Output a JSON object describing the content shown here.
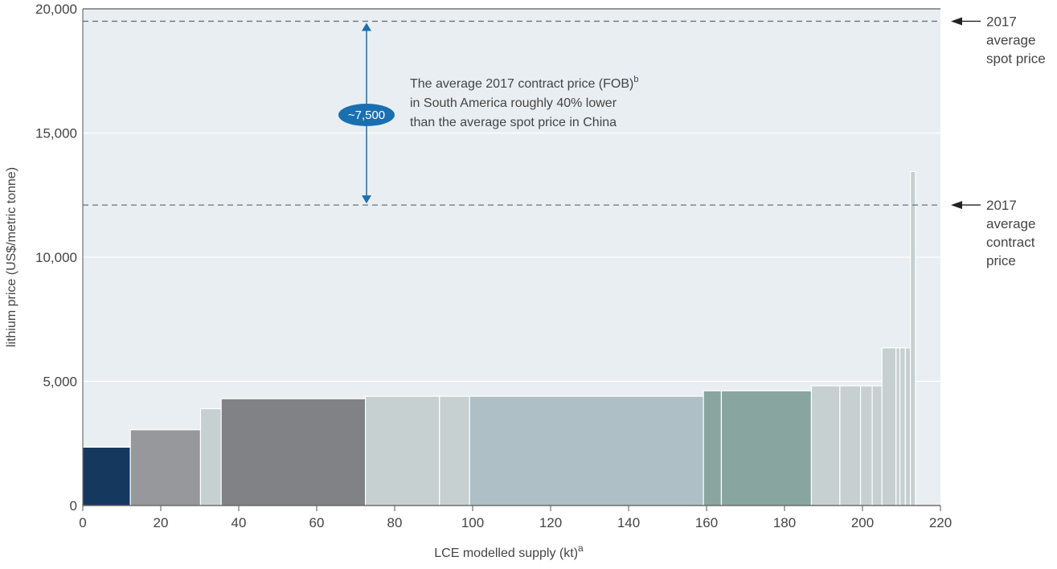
{
  "chart_data": {
    "type": "bar",
    "title": "",
    "xlabel": "LCE modelled supply (kt)",
    "xlabel_superscript": "a",
    "ylabel": "lithium price (US$/metric tonne)",
    "xlim": [
      0,
      220
    ],
    "ylim": [
      0,
      20000
    ],
    "x_ticks": [
      "0",
      "20",
      "40",
      "60",
      "80",
      "100",
      "120",
      "140",
      "160",
      "180",
      "200",
      "220"
    ],
    "y_ticks": [
      "0",
      "5,000",
      "10,000",
      "15,000",
      "20,000"
    ],
    "grid": "horizontal",
    "bars": [
      {
        "x0": 0,
        "x1": 12.2,
        "value": 2350,
        "color": "#15385e"
      },
      {
        "x0": 12.2,
        "x1": 30.2,
        "value": 3050,
        "color": "#97989b"
      },
      {
        "x0": 30.2,
        "x1": 35.5,
        "value": 3900,
        "color": "#c6d0d1"
      },
      {
        "x0": 35.5,
        "x1": 72.5,
        "value": 4300,
        "color": "#818285"
      },
      {
        "x0": 72.5,
        "x1": 91.5,
        "value": 4400,
        "color": "#c6d0d1"
      },
      {
        "x0": 91.5,
        "x1": 99.2,
        "value": 4400,
        "color": "#c6d0d1"
      },
      {
        "x0": 99.2,
        "x1": 159.2,
        "value": 4400,
        "color": "#aebfc5"
      },
      {
        "x0": 159.2,
        "x1": 163.8,
        "value": 4620,
        "color": "#89a59f"
      },
      {
        "x0": 163.8,
        "x1": 186.9,
        "value": 4620,
        "color": "#89a59f"
      },
      {
        "x0": 186.9,
        "x1": 194.2,
        "value": 4820,
        "color": "#c6d0d1"
      },
      {
        "x0": 194.2,
        "x1": 199.5,
        "value": 4820,
        "color": "#c6d0d1"
      },
      {
        "x0": 199.5,
        "x1": 202.5,
        "value": 4820,
        "color": "#c6d0d1"
      },
      {
        "x0": 202.5,
        "x1": 205.0,
        "value": 4820,
        "color": "#c6d0d1"
      },
      {
        "x0": 205.0,
        "x1": 208.6,
        "value": 6350,
        "color": "#c6d0d1"
      },
      {
        "x0": 208.6,
        "x1": 209.6,
        "value": 6350,
        "color": "#c6d0d1"
      },
      {
        "x0": 209.6,
        "x1": 211.0,
        "value": 6350,
        "color": "#c6d0d1"
      },
      {
        "x0": 211.0,
        "x1": 212.3,
        "value": 6350,
        "color": "#c6d0d1"
      },
      {
        "x0": 212.3,
        "x1": 213.6,
        "value": 13450,
        "color": "#c6d0d1"
      }
    ],
    "reference_lines": [
      {
        "value": 19500,
        "label_lines": [
          "2017",
          "average",
          "spot price"
        ]
      },
      {
        "value": 12100,
        "label_lines": [
          "2017",
          "average",
          "contract",
          "price"
        ]
      }
    ],
    "gap": {
      "label": "~7,500",
      "from": 12100,
      "to": 19500,
      "color": "#1a6fb0"
    },
    "annotation": {
      "line1": "The average 2017 contract price (FOB)",
      "line1_superscript": "b",
      "line2": "in South America roughly 40% lower",
      "line3": "than the average spot price in China"
    },
    "colors": {
      "plot_background": "#e9eef2",
      "gridline": "#ffffff",
      "dashed_line": "#6f7378",
      "axis": "#555555"
    }
  }
}
